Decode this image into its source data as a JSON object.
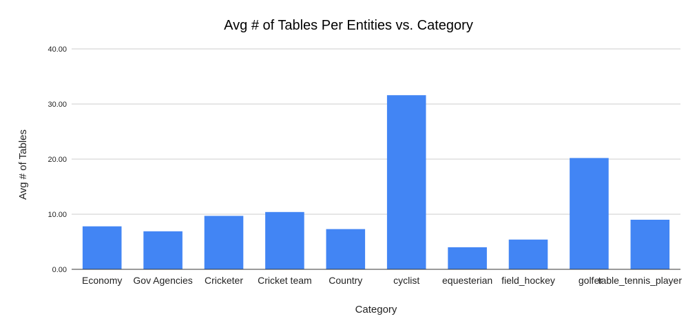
{
  "chart_data": {
    "type": "bar",
    "title": "Avg # of Tables Per Entities vs. Category",
    "xlabel": "Category",
    "ylabel": "Avg # of Tables",
    "categories": [
      "Economy",
      "Gov Agencies",
      "Cricketer",
      "Cricket team",
      "Country",
      "cyclist",
      "equesterian",
      "field_hockey",
      "golfer",
      "table_tennis_player"
    ],
    "series": [
      {
        "values": [
          7.8,
          6.9,
          9.7,
          10.4,
          7.3,
          31.6,
          4.0,
          5.4,
          20.2,
          9.0
        ]
      }
    ],
    "ylim": [
      0,
      40
    ],
    "yticks": [
      "0.00",
      "10.00",
      "20.00",
      "30.00",
      "40.00"
    ],
    "ytick_values": [
      0,
      10,
      20,
      30,
      40
    ],
    "grid": true,
    "legend": "none",
    "colors": {
      "bar": "#4285f4"
    }
  }
}
